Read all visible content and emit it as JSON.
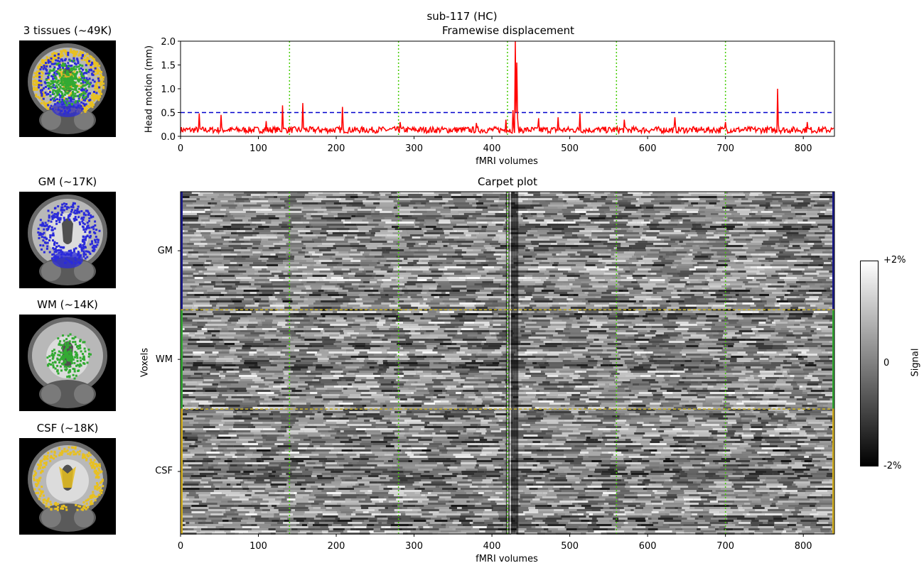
{
  "figure": {
    "suptitle": "sub-117 (HC)"
  },
  "masks": [
    {
      "key": "all",
      "title": "3 tissues (~49K)",
      "overlay": "all"
    },
    {
      "key": "gm",
      "title": "GM (~17K)",
      "overlay": "gm"
    },
    {
      "key": "wm",
      "title": "WM (~14K)",
      "overlay": "wm"
    },
    {
      "key": "csf",
      "title": "CSF (~18K)",
      "overlay": "csf"
    }
  ],
  "colors": {
    "gm": "#2b2bd9",
    "wm": "#33aa33",
    "csf": "#e8c020",
    "fd_line": "#ff0000",
    "threshold": "#0000cc",
    "run_boundary": "#44cc00"
  },
  "chart_data": [
    {
      "type": "line",
      "title": "Framewise displacement",
      "xlabel": "fMRI volumes",
      "ylabel": "Head motion (mm)",
      "xlim": [
        0,
        840
      ],
      "ylim": [
        0,
        2.0
      ],
      "xticks": [
        0,
        100,
        200,
        300,
        400,
        500,
        600,
        700,
        800
      ],
      "yticks": [
        0.0,
        0.5,
        1.0,
        1.5,
        2.0
      ],
      "ytick_labels": [
        "0.0",
        "0.5",
        "1.0",
        "1.5",
        "2.0"
      ],
      "threshold": 0.5,
      "run_boundaries": [
        140,
        280,
        420,
        560,
        700
      ],
      "baseline": 0.15,
      "spikes": [
        {
          "x": 24,
          "y": 0.48
        },
        {
          "x": 52,
          "y": 0.45
        },
        {
          "x": 110,
          "y": 0.32
        },
        {
          "x": 131,
          "y": 0.65
        },
        {
          "x": 157,
          "y": 0.7
        },
        {
          "x": 208,
          "y": 0.62
        },
        {
          "x": 282,
          "y": 0.3
        },
        {
          "x": 380,
          "y": 0.28
        },
        {
          "x": 418,
          "y": 0.35
        },
        {
          "x": 427,
          "y": 0.55
        },
        {
          "x": 430,
          "y": 2.0
        },
        {
          "x": 432,
          "y": 1.55
        },
        {
          "x": 460,
          "y": 0.38
        },
        {
          "x": 485,
          "y": 0.4
        },
        {
          "x": 513,
          "y": 0.48
        },
        {
          "x": 570,
          "y": 0.35
        },
        {
          "x": 635,
          "y": 0.4
        },
        {
          "x": 700,
          "y": 0.3
        },
        {
          "x": 767,
          "y": 1.0
        },
        {
          "x": 805,
          "y": 0.3
        }
      ],
      "series": [
        {
          "name": "",
          "color": "#ff0000"
        }
      ]
    },
    {
      "type": "heatmap",
      "title": "Carpet plot",
      "xlabel": "fMRI volumes",
      "ylabel": "Voxels",
      "xlim": [
        0,
        840
      ],
      "xticks": [
        0,
        100,
        200,
        300,
        400,
        500,
        600,
        700,
        800
      ],
      "run_boundaries": [
        140,
        280,
        420,
        560,
        700
      ],
      "tissue_bands": [
        {
          "label": "GM",
          "fraction": 0.345,
          "color": "#1a1a8c"
        },
        {
          "label": "WM",
          "fraction": 0.29,
          "color": "#33aa33"
        },
        {
          "label": "CSF",
          "fraction": 0.365,
          "color": "#d4b020"
        }
      ],
      "colorbar": {
        "label": "Signal",
        "ticks": [
          "+2%",
          "0",
          "-2%"
        ],
        "range": [
          -2,
          2
        ]
      }
    }
  ]
}
